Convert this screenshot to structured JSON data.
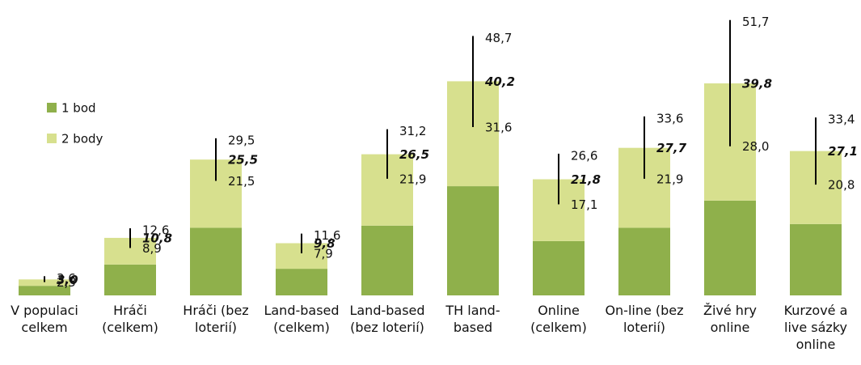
{
  "chart_data": {
    "type": "stacked_bar_errorbar",
    "categories": [
      "V populaci celkem",
      "Hráči (celkem)",
      "Hráči (bez loterií)",
      "Land-based (celkem)",
      "Land-based (bez loterií)",
      "TH land-based",
      "Online (celkem)",
      "On-line (bez loterií)",
      "Živé hry online",
      "Kurzové a live sázky online"
    ],
    "series": [
      {
        "name": "1 bod",
        "color": "#8fb04b",
        "values": [
          1.8,
          5.8,
          12.7,
          5.0,
          13.1,
          20.5,
          10.2,
          12.7,
          17.8,
          13.4
        ]
      },
      {
        "name": "2 body",
        "color": "#d7e08e",
        "values": [
          1.2,
          5.0,
          12.8,
          4.8,
          13.4,
          19.7,
          11.6,
          15.0,
          22.0,
          13.7
        ]
      }
    ],
    "totals": {
      "values": [
        3.0,
        10.8,
        25.5,
        9.8,
        26.5,
        40.2,
        21.8,
        27.7,
        39.8,
        27.1
      ],
      "value_labels": [
        "3,0",
        "10,8",
        "25,5",
        "9,8",
        "26,5",
        "40,2",
        "21,8",
        "27,7",
        "39,8",
        "27,1"
      ]
    },
    "lower": {
      "values": [
        2.5,
        8.9,
        21.5,
        7.9,
        21.9,
        31.6,
        17.1,
        21.9,
        28.0,
        20.8
      ],
      "value_labels": [
        "2,5",
        "8,9",
        "21,5",
        "7,9",
        "21,9",
        "31,6",
        "17,1",
        "21,9",
        "28,0",
        "20,8"
      ]
    },
    "upper": {
      "values": [
        3.6,
        12.6,
        29.5,
        11.6,
        31.2,
        48.7,
        26.6,
        33.6,
        51.7,
        33.4
      ],
      "value_labels": [
        "3,6",
        "12,6",
        "29,5",
        "11,6",
        "31,2",
        "48,7",
        "26,6",
        "33,6",
        "51,7",
        "33,4"
      ]
    },
    "ylim": [
      0,
      55
    ],
    "legend": "left"
  }
}
